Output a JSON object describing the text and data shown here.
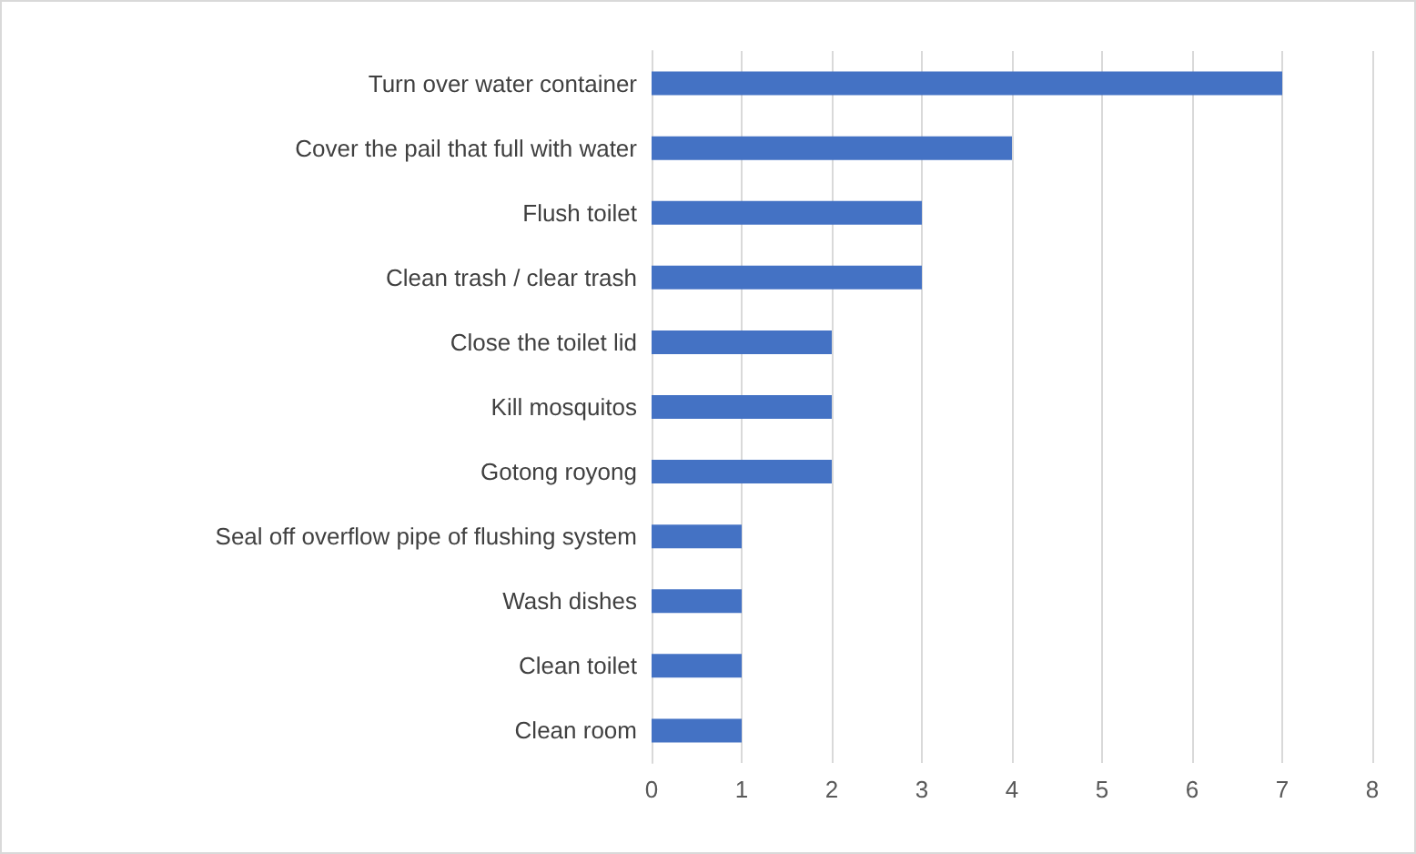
{
  "chart_data": {
    "type": "bar",
    "orientation": "horizontal",
    "categories": [
      "Turn over water container",
      "Cover the pail that full with water",
      "Flush toilet",
      "Clean trash / clear trash",
      "Close the toilet lid",
      "Kill mosquitos",
      "Gotong royong",
      "Seal off overflow pipe of flushing system",
      "Wash dishes",
      "Clean toilet",
      "Clean room"
    ],
    "values": [
      7,
      4,
      3,
      3,
      2,
      2,
      2,
      1,
      1,
      1,
      1
    ],
    "color": "#4472c4",
    "xlim": [
      0,
      8
    ],
    "xticks": [
      0,
      1,
      2,
      3,
      4,
      5,
      6,
      7,
      8
    ],
    "grid": "x"
  }
}
